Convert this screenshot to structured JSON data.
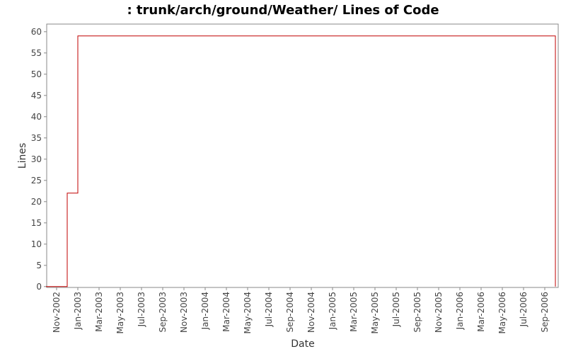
{
  "chart_data": {
    "type": "line",
    "step": true,
    "title": ": trunk/arch/ground/Weather/ Lines of Code",
    "x_label": "Date",
    "y_label": "Lines",
    "x": [
      "Oct-2002",
      "Dec-2002",
      "Jan-2003",
      "Oct-2006"
    ],
    "series": [
      {
        "name": "Lines",
        "color": "#c00000",
        "values": [
          0,
          22,
          59,
          0
        ]
      }
    ],
    "xlim": [
      "Oct-2002",
      "Oct-2006"
    ],
    "xticks": [
      "Nov-2002",
      "Jan-2003",
      "Mar-2003",
      "May-2003",
      "Jul-2003",
      "Sep-2003",
      "Nov-2003",
      "Jan-2004",
      "Mar-2004",
      "May-2004",
      "Jul-2004",
      "Sep-2004",
      "Nov-2004",
      "Jan-2005",
      "Mar-2005",
      "May-2005",
      "Jul-2005",
      "Sep-2005",
      "Nov-2005",
      "Jan-2006",
      "Mar-2006",
      "May-2006",
      "Jul-2006",
      "Sep-2006"
    ],
    "ylim": [
      -0.2,
      61.8
    ],
    "yticks": [
      0,
      5,
      10,
      15,
      20,
      25,
      30,
      35,
      40,
      45,
      50,
      55,
      60
    ],
    "grid": false
  }
}
